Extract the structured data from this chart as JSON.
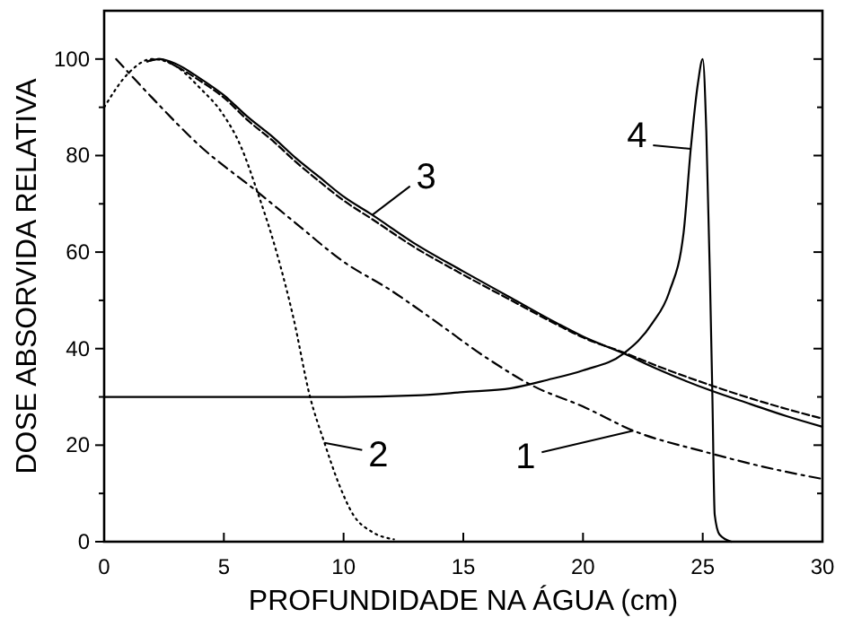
{
  "chart_data": {
    "type": "line",
    "xlabel": "PROFUNDIDADE NA ÁGUA (cm)",
    "ylabel": "DOSE ABSORVIDA RELATIVA",
    "xlim": [
      0,
      30
    ],
    "ylim": [
      0,
      110
    ],
    "xticks": [
      0,
      5,
      10,
      15,
      20,
      25,
      30
    ],
    "yticks": [
      0,
      20,
      40,
      60,
      80,
      100
    ],
    "grid": false,
    "marker": "none",
    "series": [
      {
        "color": "#000000",
        "line_style": "dashdot",
        "x": [
          0.5,
          2,
          4,
          6.4,
          8,
          10,
          12,
          13.6,
          16,
          17.9,
          20,
          22.1,
          25.1,
          28,
          30
        ],
        "values": [
          100,
          92,
          82,
          72.5,
          66,
          58,
          52,
          46.5,
          38,
          32.3,
          28,
          23,
          18.6,
          15,
          13
        ]
      },
      {
        "color": "#000000",
        "line_style": "dotted",
        "x": [
          0,
          1,
          2,
          3,
          4,
          4.9,
          5.7,
          6.4,
          7.2,
          7.9,
          8.6,
          9.2,
          9.8,
          10.4,
          11.2,
          12.1
        ],
        "values": [
          90,
          97,
          100,
          98.5,
          94,
          89,
          82,
          72.5,
          60,
          46.5,
          30,
          20.5,
          12,
          5.6,
          2,
          0.5
        ]
      },
      {
        "color": "#000000",
        "line_style": "solid",
        "x": [
          1.8,
          2.3,
          3,
          4,
          5,
          6,
          7.1,
          8,
          9,
          10,
          11.2,
          12.9,
          15,
          17,
          18.9,
          20,
          21.7,
          23,
          25.4,
          27,
          28.5,
          30
        ],
        "values": [
          99.5,
          100,
          99,
          96,
          92.5,
          88,
          83.6,
          79.5,
          75.5,
          71.5,
          67.7,
          62,
          56,
          50.5,
          45.3,
          42.5,
          39,
          36,
          31.2,
          28.5,
          26,
          23.8
        ]
      },
      {
        "color": "#000000",
        "line_style": "dashed",
        "x": [
          1.8,
          2.3,
          3,
          4,
          5,
          6,
          7.1,
          8,
          9,
          10,
          11.2,
          12.9,
          15,
          17,
          18.9,
          20,
          21.7,
          23,
          25.4,
          27,
          28.5,
          30
        ],
        "values": [
          99.5,
          100,
          98.5,
          95.5,
          92,
          87.3,
          82.8,
          78.7,
          74.6,
          70.7,
          66.8,
          61.2,
          55.3,
          50,
          45,
          42.3,
          39.2,
          36.6,
          32.3,
          29.7,
          27.5,
          25.5
        ]
      },
      {
        "color": "#000000",
        "line_style": "solid",
        "x": [
          0,
          5,
          10,
          13,
          15,
          17,
          18.5,
          20,
          21.7,
          22.9,
          23.6,
          24.2,
          24.5,
          24.8,
          25,
          25.15,
          25.3,
          25.4,
          25.5,
          25.7,
          26.2
        ],
        "values": [
          30,
          30,
          30,
          30.3,
          31,
          31.8,
          33.5,
          35.5,
          39,
          45.3,
          51.7,
          64,
          81.4,
          95,
          100,
          85,
          55,
          31,
          5.6,
          1.5,
          0
        ]
      }
    ],
    "annotations": [
      {
        "text": "1",
        "x": 22.1,
        "y": 23
      },
      {
        "text": "2",
        "x": 9.2,
        "y": 20.5
      },
      {
        "text": "3",
        "x": 11.2,
        "y": 67.7
      },
      {
        "text": "4",
        "x": 24.5,
        "y": 81.4
      }
    ]
  }
}
